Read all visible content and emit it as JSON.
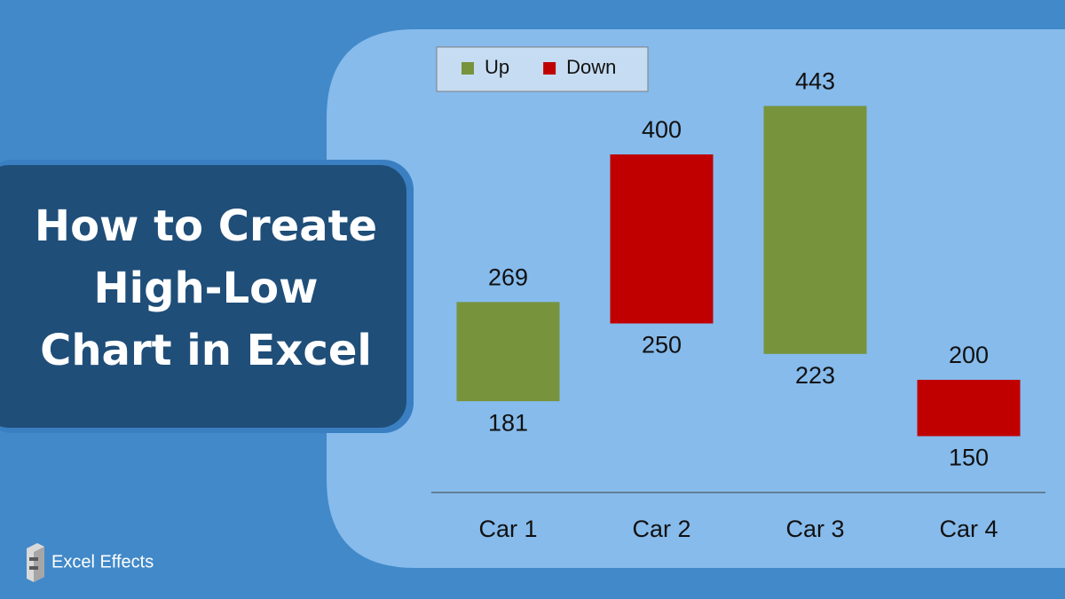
{
  "chart_data": {
    "type": "high-low",
    "title": [
      "How to Create",
      "High-Low",
      "Chart in Excel"
    ],
    "categories": [
      "Car 1",
      "Car 2",
      "Car 3",
      "Car 4"
    ],
    "open": [
      181,
      400,
      223,
      200
    ],
    "close": [
      269,
      250,
      443,
      150
    ],
    "legend": [
      {
        "name": "Up",
        "color": "#77933c"
      },
      {
        "name": "Down",
        "color": "#c00000"
      }
    ],
    "legend_position": "top-left",
    "ylim": [
      100,
      500
    ]
  },
  "brand": "Excel Effects"
}
